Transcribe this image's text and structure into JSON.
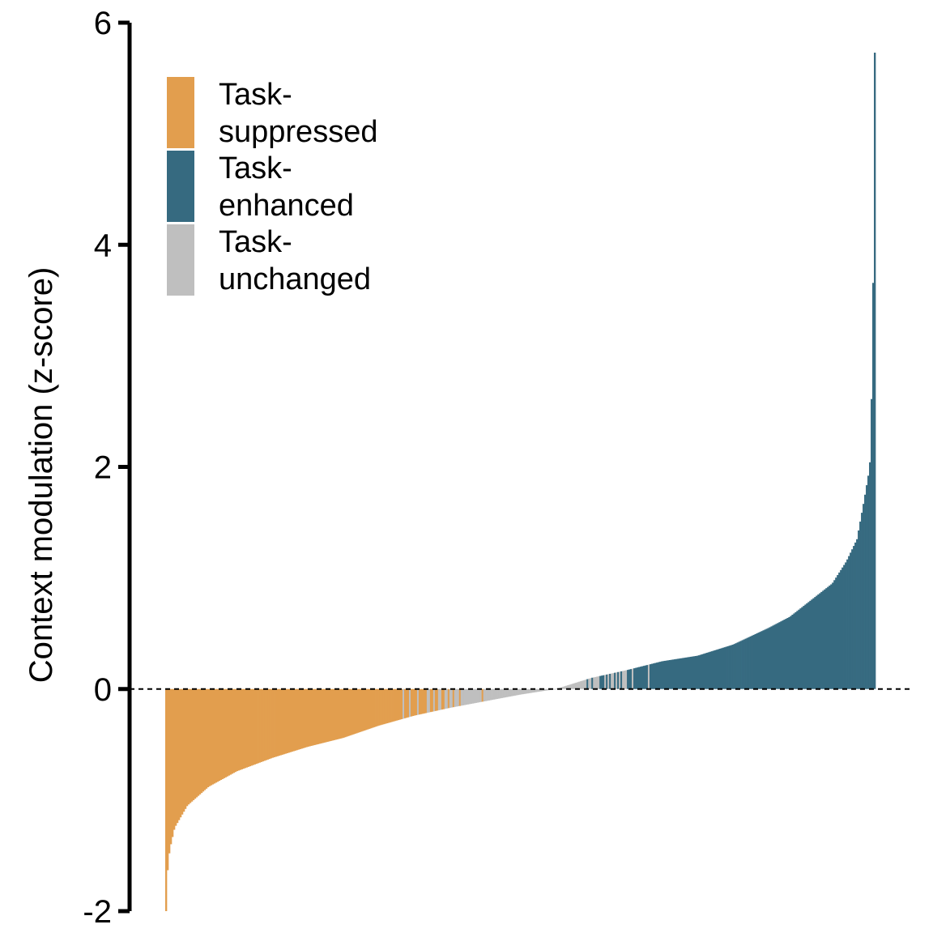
{
  "chart_data": {
    "type": "bar",
    "ylabel": "Context modulation (z-score)",
    "xlabel": "",
    "ylim": [
      -2,
      6
    ],
    "yticks": [
      -2,
      0,
      2,
      4,
      6
    ],
    "ytick_labels": [
      "-2",
      "0",
      "2",
      "4",
      "6"
    ],
    "reference_line": {
      "y": 0,
      "style": "dashed"
    },
    "n_bars": 440,
    "sorted": "ascending",
    "series": [
      {
        "name": "Task-suppressed",
        "color": "#E29E4E",
        "index_range": [
          0,
          199
        ],
        "value_range": [
          -2.0,
          -0.08
        ]
      },
      {
        "name": "Task-enhanced",
        "color": "#366A80",
        "index_range": [
          255,
          439
        ],
        "value_range": [
          0.0,
          5.73
        ]
      },
      {
        "name": "Task-unchanged",
        "color": "#BFBFBF",
        "index_range": [
          140,
          300
        ],
        "value_range": [
          -0.12,
          0.27
        ]
      }
    ],
    "profile": {
      "rank_fraction": [
        0,
        0.002,
        0.005,
        0.012,
        0.03,
        0.06,
        0.1,
        0.15,
        0.2,
        0.25,
        0.3,
        0.35,
        0.4,
        0.45,
        0.5,
        0.55,
        0.6,
        0.65,
        0.7,
        0.75,
        0.8,
        0.85,
        0.88,
        0.91,
        0.94,
        0.96,
        0.975,
        0.985,
        0.993,
        0.997,
        1.0
      ],
      "value": [
        -2.0,
        -1.65,
        -1.45,
        -1.25,
        -1.05,
        -0.88,
        -0.74,
        -0.62,
        -0.52,
        -0.44,
        -0.33,
        -0.24,
        -0.17,
        -0.11,
        -0.05,
        0.0,
        0.1,
        0.17,
        0.25,
        0.3,
        0.4,
        0.55,
        0.65,
        0.8,
        0.95,
        1.15,
        1.35,
        1.7,
        2.0,
        3.0,
        5.73
      ]
    },
    "legend": {
      "position": "top-left",
      "entries": [
        {
          "label_lines": [
            "Task-",
            "suppressed"
          ],
          "color": "#E29E4E"
        },
        {
          "label_lines": [
            "Task-",
            "enhanced"
          ],
          "color": "#366A80"
        },
        {
          "label_lines": [
            "Task-",
            "unchanged"
          ],
          "color": "#BFBFBF"
        }
      ]
    }
  }
}
